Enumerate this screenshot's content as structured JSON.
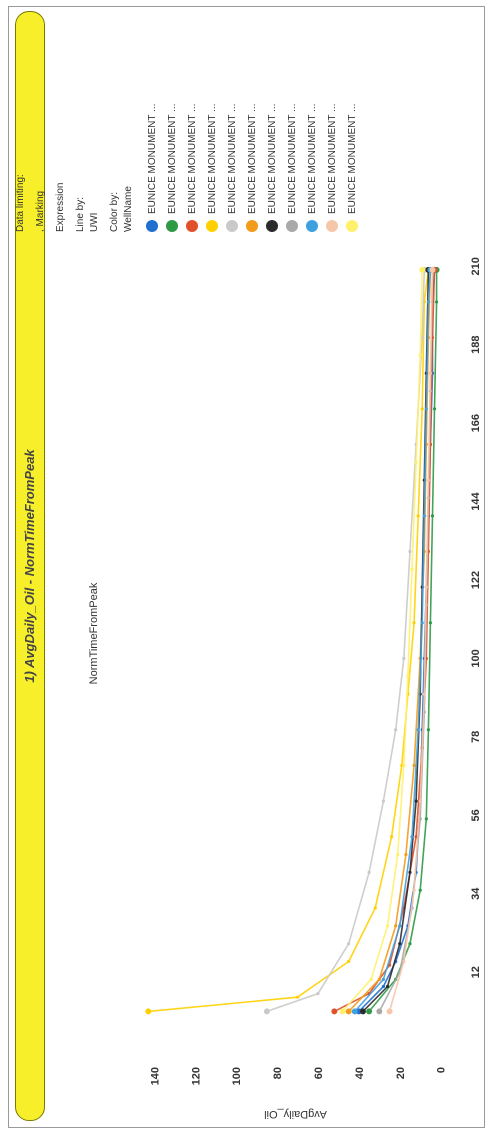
{
  "chart_data": {
    "type": "line",
    "title": "1) AvgDaily_Oil - NormTimeFromPeak",
    "xlabel": "NormTimeFromPeak",
    "ylabel": "AvgDaily_Oil",
    "xlim": [
      0,
      214
    ],
    "ylim": [
      -8,
      150
    ],
    "xticks": [
      12,
      34,
      56,
      78,
      100,
      122,
      144,
      166,
      188,
      210
    ],
    "yticks": [
      0,
      20,
      40,
      60,
      80,
      100,
      120,
      140
    ],
    "series": [
      {
        "name": "EUNICE MONUMENT ...",
        "color": "#1f6fd0",
        "x": [
          1,
          8,
          15,
          25,
          40,
          60,
          80,
          100,
          120,
          140,
          160,
          180,
          200,
          209
        ],
        "y": [
          40,
          28,
          22,
          16,
          12,
          10,
          9,
          8,
          7,
          6,
          5,
          4,
          4,
          3
        ]
      },
      {
        "name": "EUNICE MONUMENT ...",
        "color": "#2e9a46",
        "x": [
          1,
          10,
          20,
          35,
          55,
          80,
          110,
          140,
          170,
          200,
          209
        ],
        "y": [
          35,
          22,
          15,
          10,
          7,
          6,
          5,
          4,
          3,
          2,
          2
        ]
      },
      {
        "name": "EUNICE MONUMENT ...",
        "color": "#e0502a",
        "x": [
          1,
          6,
          14,
          30,
          50,
          75,
          100,
          130,
          160,
          190,
          209
        ],
        "y": [
          52,
          35,
          25,
          18,
          12,
          9,
          7,
          6,
          5,
          4,
          3
        ]
      },
      {
        "name": "EUNICE MONUMENT ...",
        "color": "#ffd000",
        "x": [
          1,
          5,
          15,
          30,
          50,
          70,
          90,
          110,
          140,
          170,
          200,
          209
        ],
        "y": [
          143,
          70,
          45,
          32,
          24,
          19,
          16,
          13,
          11,
          9,
          8,
          6
        ]
      },
      {
        "name": "EUNICE MONUMENT ...",
        "color": "#c9c9c9",
        "x": [
          1,
          6,
          20,
          40,
          60,
          80,
          100,
          130,
          160,
          190,
          209
        ],
        "y": [
          85,
          60,
          45,
          35,
          28,
          22,
          18,
          15,
          12,
          9,
          8
        ]
      },
      {
        "name": "EUNICE MONUMENT ...",
        "color": "#f39b1a",
        "x": [
          1,
          10,
          25,
          45,
          70,
          100,
          130,
          160,
          190,
          209
        ],
        "y": [
          45,
          30,
          22,
          17,
          13,
          10,
          8,
          7,
          6,
          5
        ]
      },
      {
        "name": "EUNICE MONUMENT ...",
        "color": "#2b2b2b",
        "x": [
          1,
          8,
          20,
          40,
          60,
          90,
          120,
          150,
          180,
          209
        ],
        "y": [
          38,
          26,
          20,
          15,
          12,
          10,
          9,
          8,
          7,
          6
        ]
      },
      {
        "name": "EUNICE MONUMENT ...",
        "color": "#a9a9a9",
        "x": [
          1,
          12,
          30,
          55,
          85,
          115,
          145,
          175,
          209
        ],
        "y": [
          30,
          20,
          14,
          10,
          8,
          7,
          6,
          5,
          4
        ]
      },
      {
        "name": "EUNICE MONUMENT ...",
        "color": "#3fa0e0",
        "x": [
          1,
          10,
          25,
          50,
          80,
          110,
          140,
          170,
          200,
          209
        ],
        "y": [
          42,
          28,
          20,
          14,
          11,
          9,
          8,
          7,
          6,
          5
        ]
      },
      {
        "name": "EUNICE MONUMENT ...",
        "color": "#f6c6a8",
        "x": [
          1,
          15,
          35,
          60,
          90,
          120,
          150,
          180,
          209
        ],
        "y": [
          25,
          18,
          13,
          10,
          8,
          7,
          6,
          5,
          4
        ]
      },
      {
        "name": "EUNICE MONUMENT ...",
        "color": "#fff06a",
        "x": [
          1,
          10,
          25,
          45,
          70,
          95,
          125,
          155,
          185,
          209
        ],
        "y": [
          48,
          34,
          26,
          21,
          18,
          16,
          14,
          12,
          10,
          9
        ]
      }
    ]
  },
  "legend": {
    "data_limiting": "Data limiting:",
    "marking": ", Marking",
    "expression": "Expression",
    "line_by_label": "Line by:",
    "line_by_value": "UWI",
    "color_by_label": "Color by:",
    "color_by_value": "WellName"
  }
}
